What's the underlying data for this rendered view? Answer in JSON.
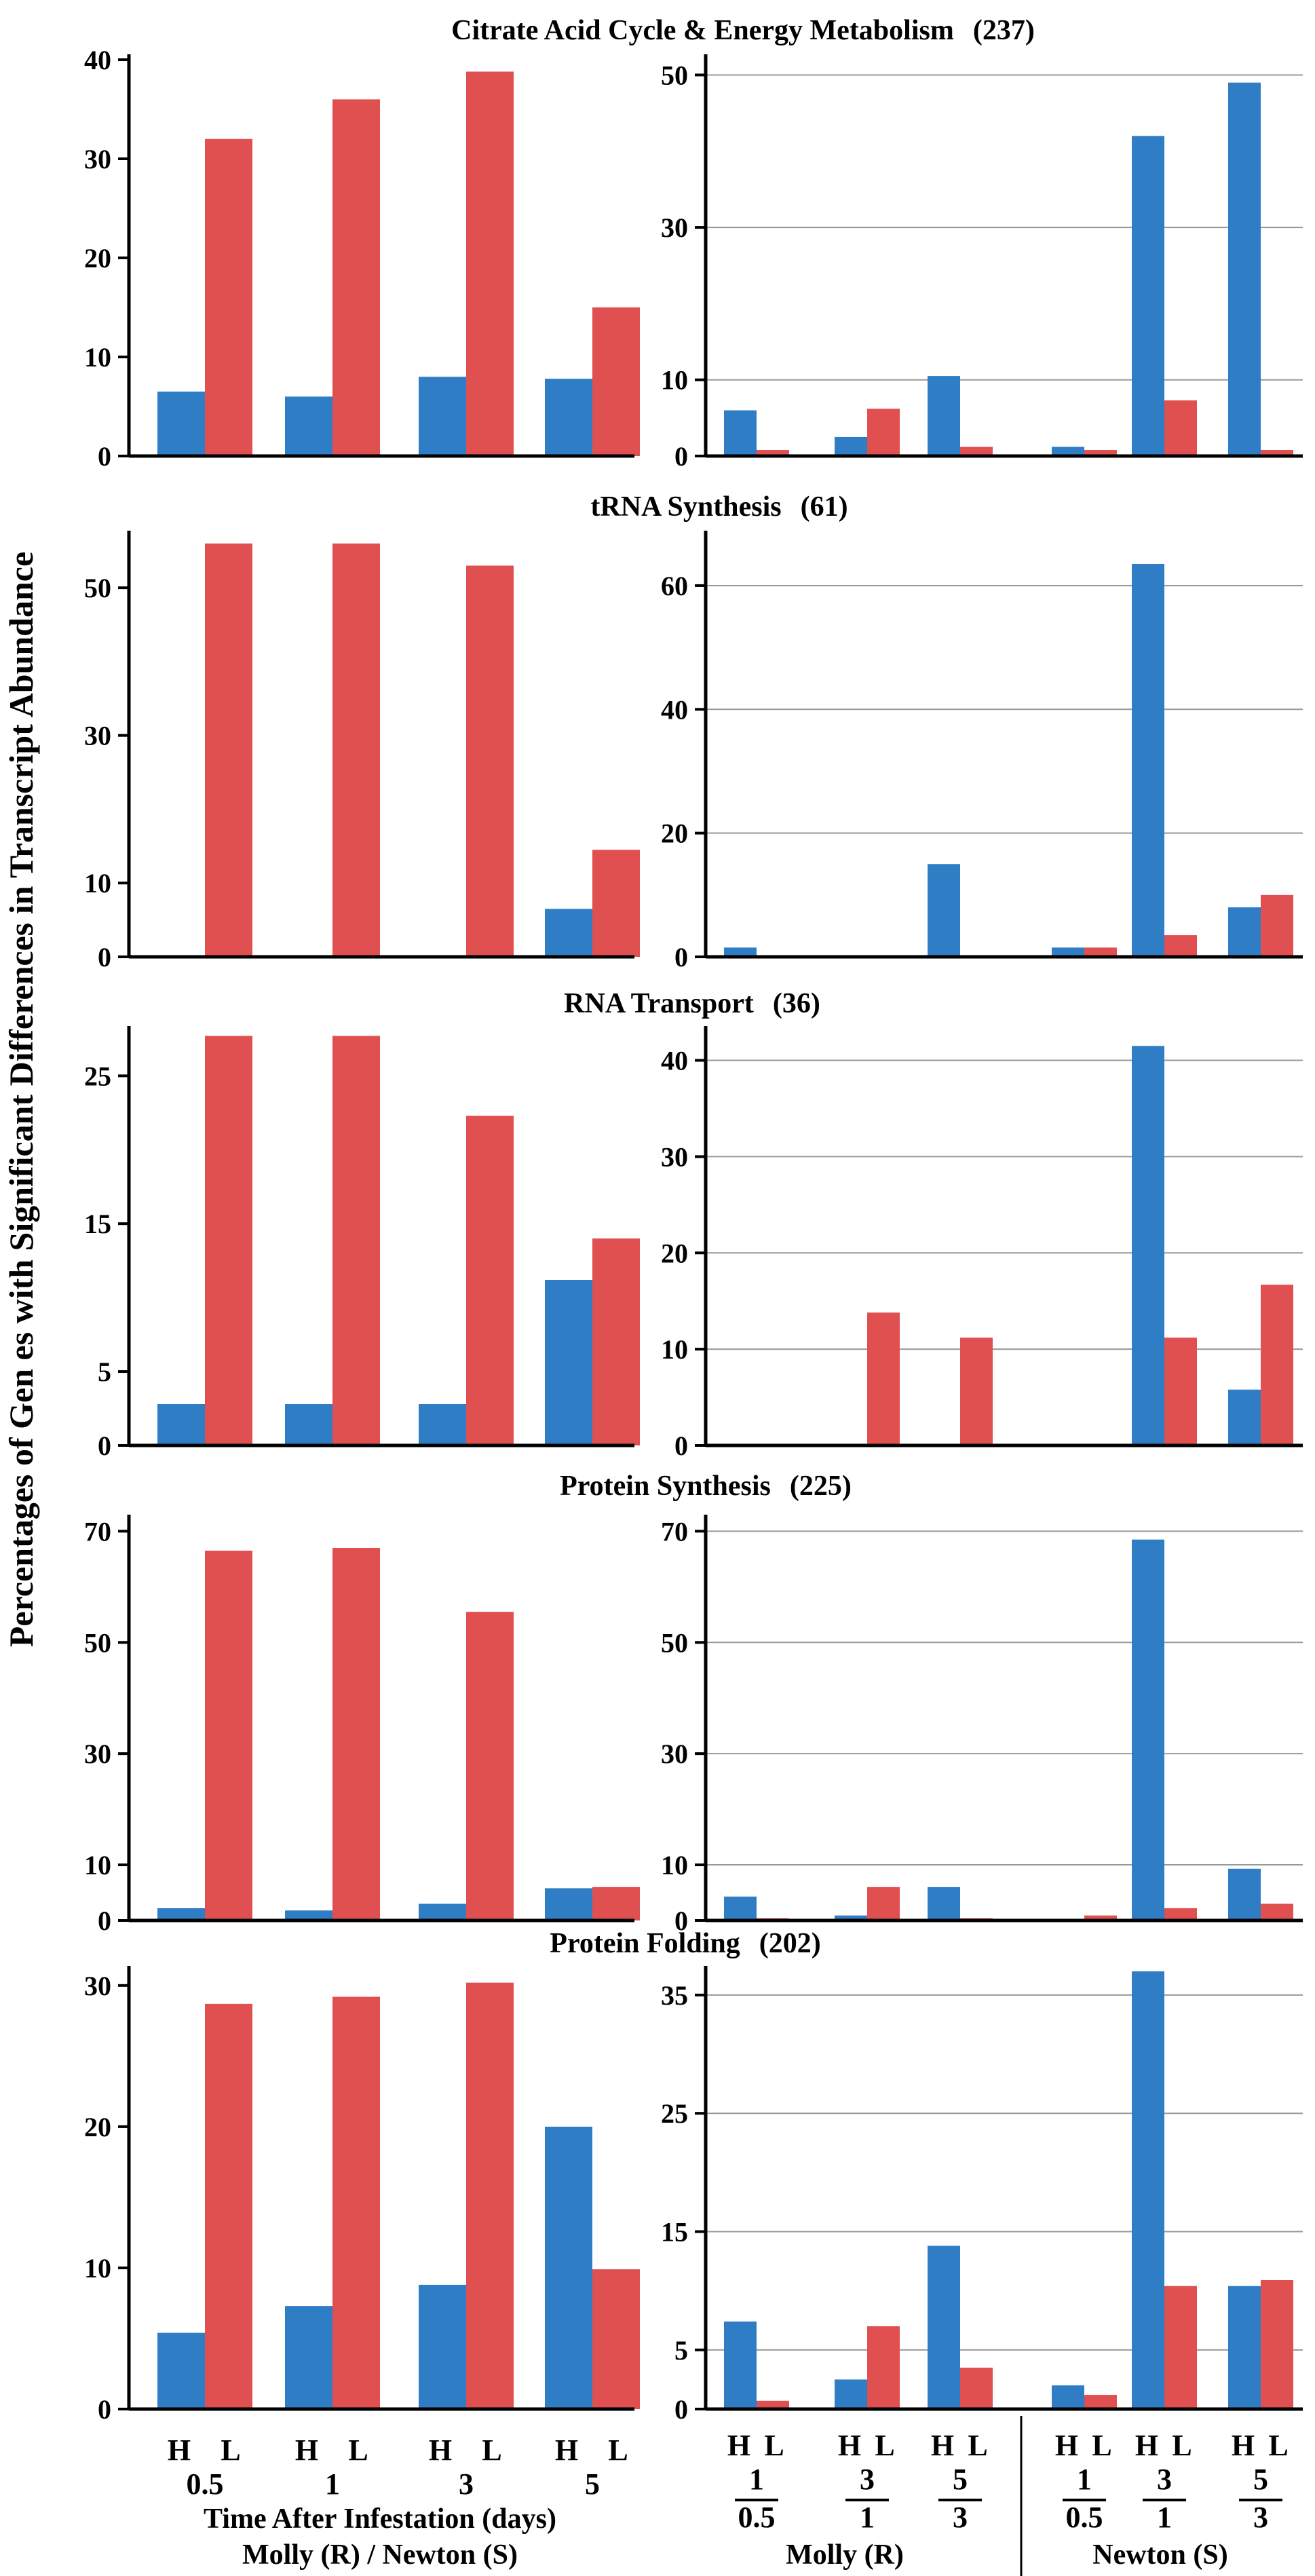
{
  "ylabel": "Percentages of Gen es with Significant Differences in Transcript Abundance",
  "colors": {
    "H": "#2f7ec5",
    "L": "#e05050",
    "grid": "#999999"
  },
  "left_xaxis": {
    "hl": [
      "H",
      "L"
    ],
    "days": [
      "0.5",
      "1",
      "3",
      "5"
    ],
    "label_line1": "Time After Infestation (days)",
    "label_line2": "Molly (R) / Newton (S)"
  },
  "right_xaxis": {
    "hl": [
      "H",
      "L"
    ],
    "numerators": [
      "1",
      "3",
      "5",
      "1",
      "3",
      "5"
    ],
    "denominators": [
      "0.5",
      "1",
      "3",
      "0.5",
      "1",
      "3"
    ],
    "group_molly": "Molly (R)",
    "group_newton": "Newton (S)"
  },
  "chart_data": [
    {
      "type": "bar",
      "title": "Citrate Acid Cycle & Energy Metabolism",
      "count": "(237)",
      "left": {
        "categories": [
          "0.5",
          "1",
          "3",
          "5"
        ],
        "ylim": [
          0,
          40
        ],
        "yticks": [
          "0",
          "10",
          "20",
          "30",
          "40"
        ],
        "series": [
          {
            "name": "H",
            "values": [
              6.5,
              6,
              8,
              7.8
            ]
          },
          {
            "name": "L",
            "values": [
              32,
              36,
              38.8,
              15
            ]
          }
        ]
      },
      "right": {
        "categories": [
          "1/0.5",
          "3/1",
          "5/3",
          "1/0.5",
          "3/1",
          "5/3"
        ],
        "ylim": [
          0,
          52
        ],
        "yticks": [
          "0",
          "10",
          "30",
          "50"
        ],
        "series": [
          {
            "name": "H",
            "values": [
              6,
              2.5,
              10.5,
              1.2,
              42,
              49
            ]
          },
          {
            "name": "L",
            "values": [
              0.8,
              6.2,
              1.2,
              0.8,
              7.3,
              0.8
            ]
          }
        ]
      }
    },
    {
      "type": "bar",
      "title": "tRNA Synthesis",
      "count": "(61)",
      "left": {
        "categories": [
          "0.5",
          "1",
          "3",
          "5"
        ],
        "ylim": [
          0,
          57
        ],
        "yticks": [
          "0",
          "10",
          "30",
          "50"
        ],
        "series": [
          {
            "name": "H",
            "values": [
              0,
              0,
              0,
              6.5
            ]
          },
          {
            "name": "L",
            "values": [
              56,
              56,
              53,
              14.5
            ]
          }
        ]
      },
      "right": {
        "categories": [
          "1/0.5",
          "3/1",
          "5/3",
          "1/0.5",
          "3/1",
          "5/3"
        ],
        "ylim": [
          0,
          68
        ],
        "yticks": [
          "0",
          "20",
          "40",
          "60"
        ],
        "series": [
          {
            "name": "H",
            "values": [
              1.5,
              0,
              15,
              1.5,
              63.5,
              8
            ]
          },
          {
            "name": "L",
            "values": [
              0,
              0,
              0,
              1.5,
              3.5,
              10
            ]
          }
        ]
      }
    },
    {
      "type": "bar",
      "title": "RNA Transport",
      "count": "(36)",
      "left": {
        "categories": [
          "0.5",
          "1",
          "3",
          "5"
        ],
        "ylim": [
          0,
          28
        ],
        "yticks": [
          "0",
          "5",
          "15",
          "25"
        ],
        "series": [
          {
            "name": "H",
            "values": [
              2.8,
              2.8,
              2.8,
              11.2
            ]
          },
          {
            "name": "L",
            "values": [
              27.7,
              27.7,
              22.3,
              14
            ]
          }
        ]
      },
      "right": {
        "categories": [
          "1/0.5",
          "3/1",
          "5/3",
          "1/0.5",
          "3/1",
          "5/3"
        ],
        "ylim": [
          0,
          43
        ],
        "yticks": [
          "0",
          "10",
          "20",
          "30",
          "40"
        ],
        "series": [
          {
            "name": "H",
            "values": [
              0,
              0,
              0,
              0,
              41.5,
              5.8
            ]
          },
          {
            "name": "L",
            "values": [
              0,
              13.8,
              11.2,
              0,
              11.2,
              16.7
            ]
          }
        ]
      }
    },
    {
      "type": "bar",
      "title": "Protein Synthesis",
      "count": "(225)",
      "left": {
        "categories": [
          "0.5",
          "1",
          "3",
          "5"
        ],
        "ylim": [
          0,
          72
        ],
        "yticks": [
          "0",
          "10",
          "30",
          "50",
          "70"
        ],
        "series": [
          {
            "name": "H",
            "values": [
              2.2,
              1.8,
              3,
              5.8
            ]
          },
          {
            "name": "L",
            "values": [
              66.5,
              67,
              55.5,
              6
            ]
          }
        ]
      },
      "right": {
        "categories": [
          "1/0.5",
          "3/1",
          "5/3",
          "1/0.5",
          "3/1",
          "5/3"
        ],
        "ylim": [
          0,
          72
        ],
        "yticks": [
          "0",
          "10",
          "30",
          "50",
          "70"
        ],
        "series": [
          {
            "name": "H",
            "values": [
              4.3,
              0.9,
              6,
              0,
              68.5,
              9.3
            ]
          },
          {
            "name": "L",
            "values": [
              0.4,
              6,
              0.4,
              0.9,
              2.2,
              3
            ]
          }
        ]
      }
    },
    {
      "type": "bar",
      "title": "Protein Folding",
      "count": "(202)",
      "left": {
        "categories": [
          "0.5",
          "1",
          "3",
          "5"
        ],
        "ylim": [
          0,
          31
        ],
        "yticks": [
          "0",
          "10",
          "20",
          "30"
        ],
        "series": [
          {
            "name": "H",
            "values": [
              5.4,
              7.3,
              8.8,
              20
            ]
          },
          {
            "name": "L",
            "values": [
              28.7,
              29.2,
              30.2,
              9.9
            ]
          }
        ]
      },
      "right": {
        "categories": [
          "1/0.5",
          "3/1",
          "5/3",
          "1/0.5",
          "3/1",
          "5/3"
        ],
        "ylim": [
          0,
          37
        ],
        "yticks": [
          "0",
          "5",
          "15",
          "25",
          "35"
        ],
        "series": [
          {
            "name": "H",
            "values": [
              7.4,
              2.5,
              13.8,
              2,
              37,
              10.4
            ]
          },
          {
            "name": "L",
            "values": [
              0.7,
              7,
              3.5,
              1.2,
              10.4,
              10.9
            ]
          }
        ]
      }
    }
  ]
}
